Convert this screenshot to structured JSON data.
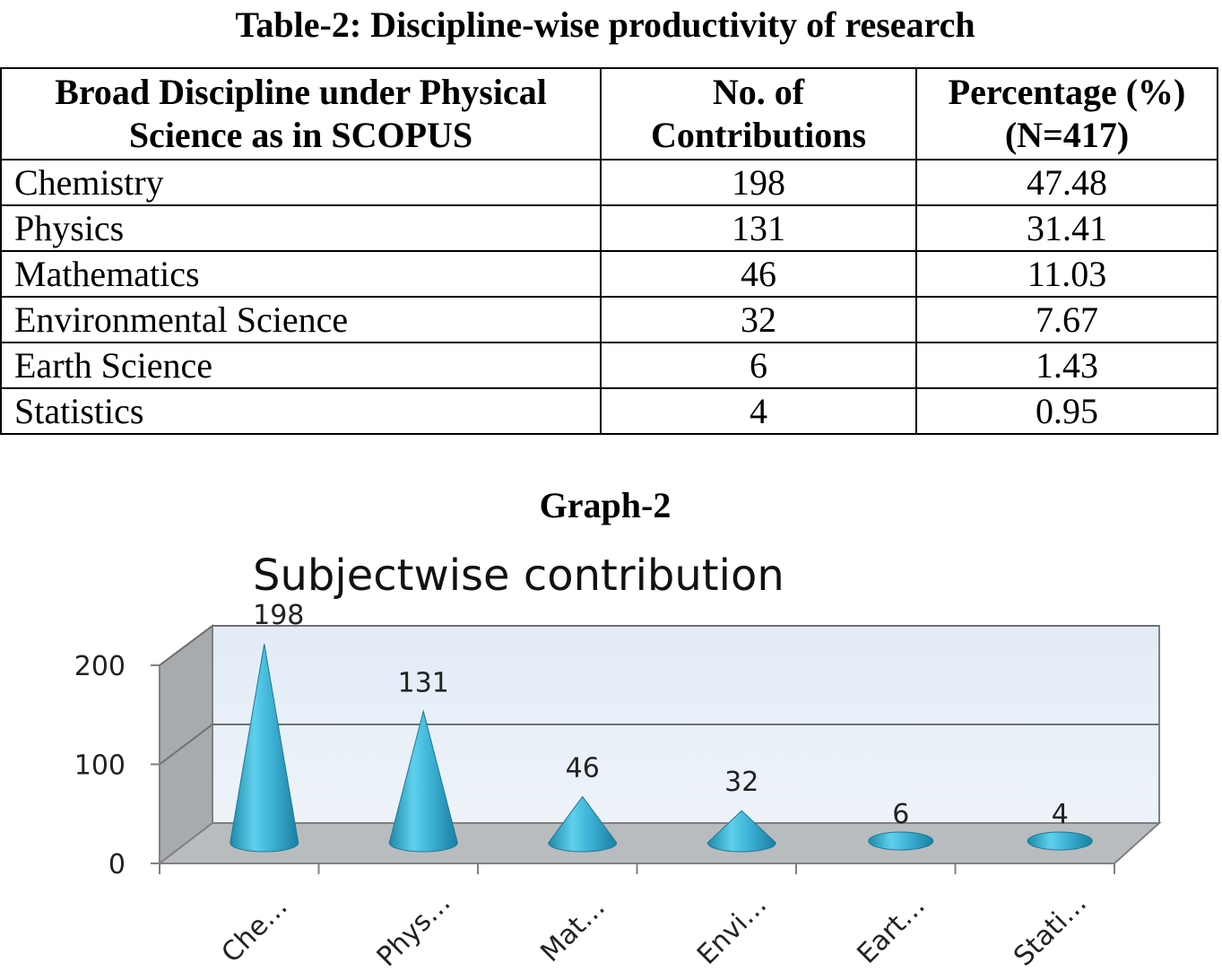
{
  "table": {
    "title": "Table-2: Discipline-wise productivity of research",
    "headers": {
      "col1": "Broad Discipline under Physical Science as in SCOPUS",
      "col2": "No. of Contributions",
      "col3": "Percentage (%) (N=417)"
    },
    "rows": [
      {
        "discipline": "Chemistry",
        "contributions": "198",
        "percentage": "47.48"
      },
      {
        "discipline": "Physics",
        "contributions": "131",
        "percentage": "31.41"
      },
      {
        "discipline": "Mathematics",
        "contributions": "46",
        "percentage": "11.03"
      },
      {
        "discipline": "Environmental Science",
        "contributions": "32",
        "percentage": "7.67"
      },
      {
        "discipline": "Earth Science",
        "contributions": "6",
        "percentage": "1.43"
      },
      {
        "discipline": "Statistics",
        "contributions": "4",
        "percentage": "0.95"
      }
    ]
  },
  "graph_caption": "Graph-2",
  "chart_data": {
    "type": "bar",
    "title": "Subjectwise contribution",
    "categories": [
      "Che…",
      "Phys…",
      "Mat…",
      "Envi…",
      "Eart…",
      "Stati…"
    ],
    "values": [
      198,
      131,
      46,
      32,
      6,
      4
    ],
    "data_labels": [
      "198",
      "131",
      "46",
      "32",
      "6",
      "4"
    ],
    "yticks": [
      "0",
      "100",
      "200"
    ],
    "ylim": [
      0,
      200
    ],
    "grid": true,
    "legend": "none",
    "colors": {
      "cone": "#3fb3d6",
      "back_wall": "#e6eef7",
      "floor": "#b9bcbf",
      "side_wall": "#a9acb0"
    }
  }
}
